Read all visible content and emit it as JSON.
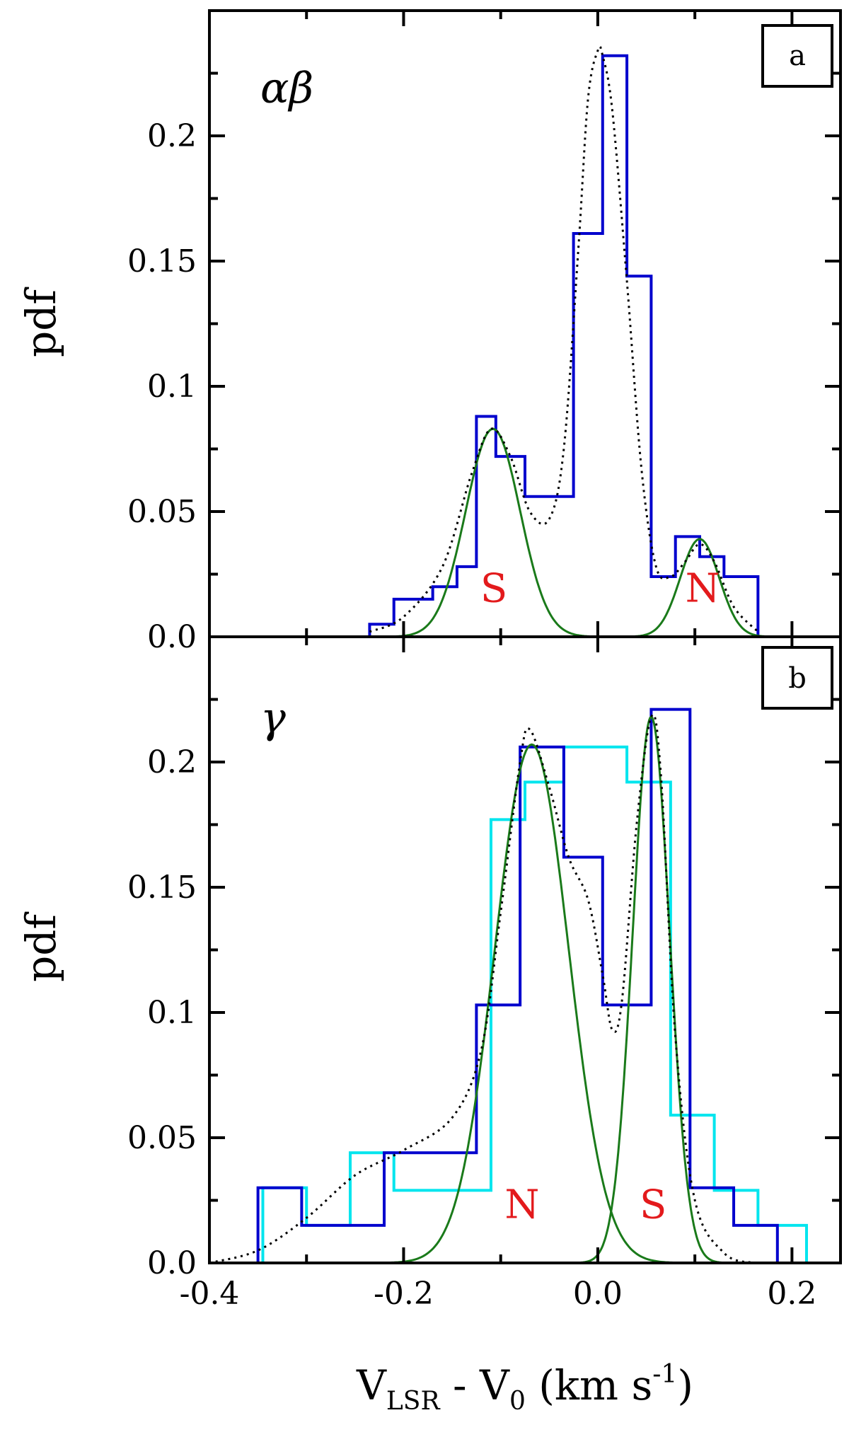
{
  "chart_data": [
    {
      "panel": "a",
      "type": "line",
      "label": "αβ",
      "ylabel": "pdf",
      "xlim": [
        -0.4,
        0.25
      ],
      "ylim": [
        0.0,
        0.25
      ],
      "yticks": [
        "0.0",
        "0.05",
        "0.1",
        "0.15",
        "0.2"
      ],
      "histograms": [
        {
          "color": "#0000cd",
          "edges": [
            -0.235,
            -0.21,
            -0.17,
            -0.145,
            -0.125,
            -0.105,
            -0.075,
            -0.025,
            0.005,
            0.03,
            0.055,
            0.08,
            0.105,
            0.13,
            0.165
          ],
          "heights": [
            0.005,
            0.015,
            0.02,
            0.028,
            0.088,
            0.072,
            0.056,
            0.161,
            0.232,
            0.144,
            0.024,
            0.04,
            0.032,
            0.024
          ]
        }
      ],
      "gaussians": [
        {
          "color": "#1a7a1a",
          "mean": -0.108,
          "sigma": 0.028,
          "amplitude": 0.083
        },
        {
          "color": "#1a7a1a",
          "mean": 0.105,
          "sigma": 0.02,
          "amplitude": 0.039
        }
      ],
      "dotted_curve": {
        "color": "#000000",
        "x": [
          -0.235,
          -0.2,
          -0.16,
          -0.13,
          -0.11,
          -0.09,
          -0.07,
          -0.05,
          -0.035,
          -0.02,
          -0.01,
          0.0,
          0.005,
          0.015,
          0.03,
          0.045,
          0.06,
          0.075,
          0.09,
          0.105,
          0.12,
          0.14,
          0.165
        ],
        "y": [
          0.002,
          0.008,
          0.028,
          0.065,
          0.083,
          0.072,
          0.05,
          0.047,
          0.075,
          0.155,
          0.215,
          0.234,
          0.232,
          0.21,
          0.142,
          0.067,
          0.028,
          0.024,
          0.03,
          0.037,
          0.03,
          0.012,
          0.002
        ]
      },
      "annotations": [
        {
          "text": "S",
          "x": -0.107,
          "y": 0.014
        },
        {
          "text": "N",
          "x": 0.108,
          "y": 0.014
        }
      ]
    },
    {
      "panel": "b",
      "type": "line",
      "label": "γ",
      "ylabel": "pdf",
      "xlabel_parts": {
        "V": "V",
        "sub1": "LSR",
        "mid": " - V",
        "sub2": "0",
        "tail": " (km s",
        "sup": "-1",
        "end": ")"
      },
      "xlim": [
        -0.4,
        0.25
      ],
      "ylim": [
        0.0,
        0.25
      ],
      "xticks": [
        "-0.4",
        "-0.2",
        "0.0",
        "0.2"
      ],
      "xtick_values": [
        -0.4,
        -0.2,
        0.0,
        0.2
      ],
      "yticks": [
        "0.0",
        "0.05",
        "0.1",
        "0.15",
        "0.2"
      ],
      "histograms": [
        {
          "color": "#00e5ee",
          "edges": [
            -0.345,
            -0.3,
            -0.255,
            -0.21,
            -0.155,
            -0.11,
            -0.075,
            -0.035,
            0.0,
            0.03,
            0.075,
            0.12,
            0.165,
            0.18,
            0.215
          ],
          "heights": [
            0.03,
            0.015,
            0.044,
            0.029,
            0.029,
            0.177,
            0.192,
            0.206,
            0.206,
            0.192,
            0.059,
            0.029,
            0.015,
            0.015
          ]
        },
        {
          "color": "#0000cd",
          "edges": [
            -0.35,
            -0.305,
            -0.22,
            -0.125,
            -0.08,
            -0.035,
            0.005,
            0.055,
            0.095,
            0.14,
            0.185
          ],
          "heights": [
            0.03,
            0.015,
            0.044,
            0.103,
            0.206,
            0.162,
            0.103,
            0.221,
            0.03,
            0.015
          ]
        }
      ],
      "gaussians": [
        {
          "color": "#1a7a1a",
          "mean": -0.068,
          "sigma": 0.038,
          "amplitude": 0.207
        },
        {
          "color": "#1a7a1a",
          "mean": 0.055,
          "sigma": 0.019,
          "amplitude": 0.218
        }
      ],
      "dotted_curve": {
        "color": "#000000",
        "x": [
          -0.4,
          -0.35,
          -0.3,
          -0.25,
          -0.2,
          -0.15,
          -0.12,
          -0.1,
          -0.08,
          -0.07,
          -0.05,
          -0.03,
          -0.01,
          0.005,
          0.015,
          0.025,
          0.04,
          0.055,
          0.065,
          0.08,
          0.1,
          0.13,
          0.16
        ],
        "y": [
          0.0,
          0.005,
          0.018,
          0.035,
          0.045,
          0.058,
          0.085,
          0.14,
          0.2,
          0.213,
          0.19,
          0.162,
          0.145,
          0.115,
          0.093,
          0.105,
          0.175,
          0.218,
          0.195,
          0.09,
          0.025,
          0.004,
          0.0
        ]
      },
      "annotations": [
        {
          "text": "N",
          "x": -0.078,
          "y": 0.018
        },
        {
          "text": "S",
          "x": 0.057,
          "y": 0.018
        }
      ]
    }
  ]
}
